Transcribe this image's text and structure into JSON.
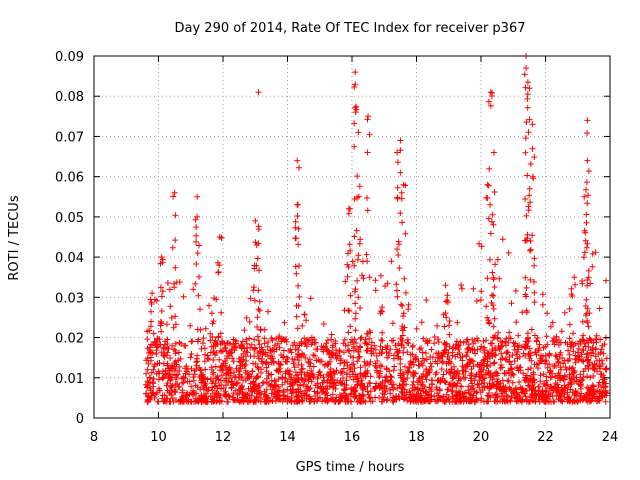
{
  "chart_data": {
    "type": "scatter",
    "title": "Day 290 of 2014, Rate Of TEC Index for receiver p367",
    "xlabel": "GPS time / hours",
    "ylabel": "ROTI / TECUs",
    "xlim": [
      8,
      24
    ],
    "ylim": [
      0,
      0.09
    ],
    "xticks": [
      8,
      10,
      12,
      14,
      16,
      18,
      20,
      22,
      24
    ],
    "yticks": [
      0,
      0.01,
      0.02,
      0.03,
      0.04,
      0.05,
      0.06,
      0.07,
      0.08,
      0.09
    ],
    "xtick_labels": [
      "8",
      "10",
      "12",
      "14",
      "16",
      "18",
      "20",
      "22",
      "24"
    ],
    "ytick_labels": [
      "0",
      "0.01",
      "0.02",
      "0.03",
      "0.04",
      "0.05",
      "0.06",
      "0.07",
      "0.08",
      "0.09"
    ],
    "grid": true,
    "marker": "+",
    "color": "#ff0000",
    "series": [
      {
        "name": "ROTI",
        "x_range": [
          9.6,
          23.9
        ],
        "baseline_band": [
          0.004,
          0.02
        ],
        "notable_peaks": [
          {
            "x": 9.8,
            "y": 0.031
          },
          {
            "x": 10.1,
            "y": 0.04
          },
          {
            "x": 10.5,
            "y": 0.056
          },
          {
            "x": 11.2,
            "y": 0.055
          },
          {
            "x": 11.9,
            "y": 0.045
          },
          {
            "x": 13.1,
            "y": 0.081
          },
          {
            "x": 13.0,
            "y": 0.049
          },
          {
            "x": 14.3,
            "y": 0.064
          },
          {
            "x": 14.3,
            "y": 0.053
          },
          {
            "x": 15.9,
            "y": 0.052
          },
          {
            "x": 16.1,
            "y": 0.086
          },
          {
            "x": 16.1,
            "y": 0.083
          },
          {
            "x": 16.2,
            "y": 0.071
          },
          {
            "x": 16.5,
            "y": 0.075
          },
          {
            "x": 17.5,
            "y": 0.069
          },
          {
            "x": 17.4,
            "y": 0.066
          },
          {
            "x": 17.6,
            "y": 0.058
          },
          {
            "x": 18.9,
            "y": 0.033
          },
          {
            "x": 20.3,
            "y": 0.081
          },
          {
            "x": 20.4,
            "y": 0.066
          },
          {
            "x": 20.2,
            "y": 0.058
          },
          {
            "x": 21.4,
            "y": 0.09
          },
          {
            "x": 21.4,
            "y": 0.087
          },
          {
            "x": 21.5,
            "y": 0.082
          },
          {
            "x": 21.6,
            "y": 0.073
          },
          {
            "x": 23.3,
            "y": 0.074
          },
          {
            "x": 23.3,
            "y": 0.064
          },
          {
            "x": 23.2,
            "y": 0.055
          }
        ]
      }
    ]
  }
}
